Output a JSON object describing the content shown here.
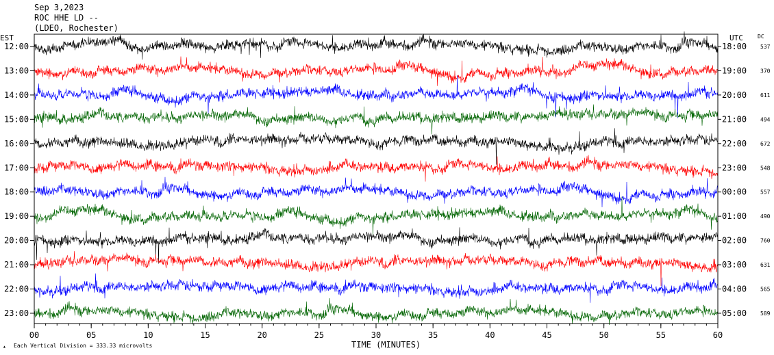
{
  "header": {
    "date": "Sep 3,2023",
    "station": "ROC HHE LD --",
    "network": "(LDEO, Rochester)",
    "left_tz": "EST",
    "right_tz": "UTC",
    "dc_label": "DC"
  },
  "footer": {
    "scale_note": "Each Vertical Division =  333.33 microvolts",
    "xlabel": "TIME (MINUTES)"
  },
  "chart_data": {
    "type": "line",
    "title": "Sep 3,2023 ROC HHE LD -- (LDEO, Rochester)",
    "xlabel": "TIME (MINUTES)",
    "xlim": [
      0,
      60
    ],
    "x_ticks": [
      "00",
      "05",
      "10",
      "15",
      "20",
      "25",
      "30",
      "35",
      "40",
      "45",
      "50",
      "55",
      "60"
    ],
    "trace_colors": [
      "#000000",
      "#ff0000",
      "#0000ff",
      "#006400"
    ],
    "rows": [
      {
        "est": "12:00",
        "utc": "18:00",
        "dc": "537"
      },
      {
        "est": "13:00",
        "utc": "19:00",
        "dc": "370"
      },
      {
        "est": "14:00",
        "utc": "20:00",
        "dc": "611"
      },
      {
        "est": "15:00",
        "utc": "21:00",
        "dc": "494"
      },
      {
        "est": "16:00",
        "utc": "22:00",
        "dc": "672"
      },
      {
        "est": "17:00",
        "utc": "23:00",
        "dc": "548"
      },
      {
        "est": "18:00",
        "utc": "00:00",
        "dc": "557"
      },
      {
        "est": "19:00",
        "utc": "01:00",
        "dc": "490"
      },
      {
        "est": "20:00",
        "utc": "02:00",
        "dc": "760"
      },
      {
        "est": "21:00",
        "utc": "03:00",
        "dc": "631"
      },
      {
        "est": "22:00",
        "utc": "04:00",
        "dc": "565"
      },
      {
        "est": "23:00",
        "utc": "05:00",
        "dc": "589"
      }
    ]
  }
}
